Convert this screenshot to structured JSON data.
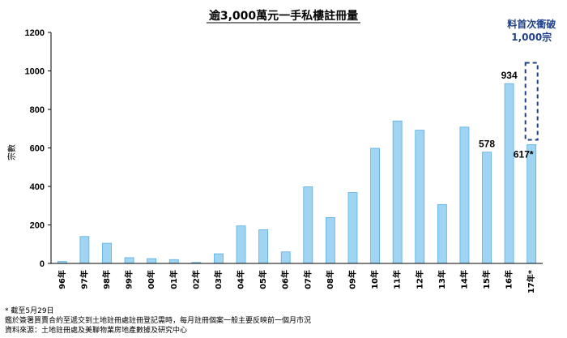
{
  "chart_data": {
    "type": "bar",
    "title": "逾3,000萬元一手私樓註冊量",
    "ylabel": "宗數",
    "xlabel": "",
    "ylim": [
      0,
      1200
    ],
    "yticks": [
      0,
      200,
      400,
      600,
      800,
      1000,
      1200
    ],
    "grid": false,
    "bar_color": "#9fd4f2",
    "bar_edge_color": "#5aaee0",
    "categories": [
      "96年",
      "97年",
      "98年",
      "99年",
      "00年",
      "01年",
      "02年",
      "03年",
      "04年",
      "05年",
      "06年",
      "07年",
      "08年",
      "09年",
      "10年",
      "11年",
      "12年",
      "13年",
      "14年",
      "15年",
      "16年",
      "17年*"
    ],
    "values": [
      10,
      140,
      105,
      30,
      25,
      20,
      5,
      50,
      195,
      175,
      60,
      398,
      238,
      368,
      598,
      740,
      692,
      306,
      708,
      578,
      934,
      617
    ],
    "data_labels": [
      {
        "index": 19,
        "text": "578"
      },
      {
        "index": 20,
        "text": "934"
      },
      {
        "index": 21,
        "text": "617*"
      }
    ],
    "annotation": {
      "lines": [
        "料首次衝破",
        "1,000宗"
      ],
      "color": "#1f3f87",
      "target_value": 1000,
      "category_index": 21
    }
  },
  "footnotes": [
    "* 截至5月29日",
    "鑑於簽署買賣合約至遞交到土地註冊處註冊登記需時，每月註冊個案一般主要反映前一個月市況",
    "資料來源：土地註冊處及美聯物業房地產數據及研究中心"
  ]
}
